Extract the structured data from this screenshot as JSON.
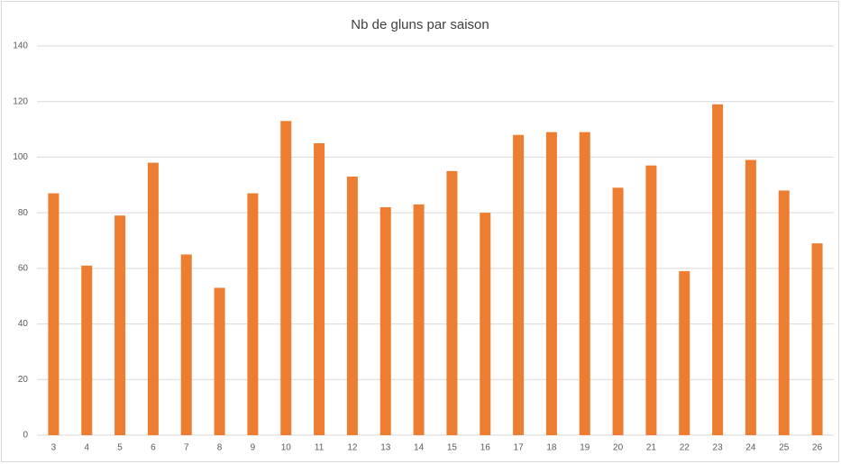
{
  "chart_data": {
    "type": "bar",
    "title": "Nb de gluns par saison",
    "categories": [
      "3",
      "4",
      "5",
      "6",
      "7",
      "8",
      "9",
      "10",
      "11",
      "12",
      "13",
      "14",
      "15",
      "16",
      "17",
      "18",
      "19",
      "20",
      "21",
      "22",
      "23",
      "24",
      "25",
      "26"
    ],
    "values": [
      87,
      61,
      79,
      98,
      65,
      53,
      87,
      113,
      105,
      93,
      82,
      83,
      95,
      80,
      108,
      109,
      109,
      89,
      97,
      59,
      119,
      99,
      88,
      69
    ],
    "color": "#ed7d31",
    "ylim": [
      0,
      140
    ],
    "yticks": [
      0,
      20,
      40,
      60,
      80,
      100,
      120,
      140
    ],
    "grid": true
  }
}
